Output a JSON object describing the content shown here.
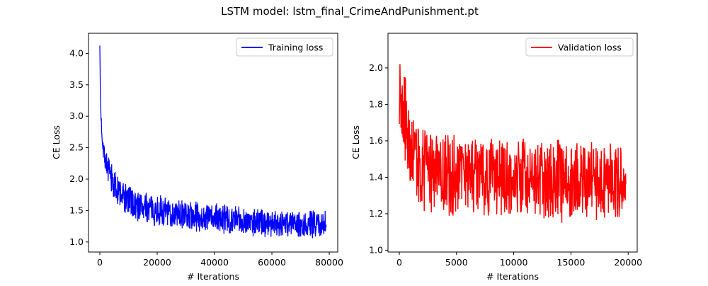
{
  "figure": {
    "title": "LSTM model: lstm_final_CrimeAndPunishment.pt"
  },
  "chart_data": [
    {
      "type": "line",
      "xlabel": "# Iterations",
      "ylabel": "CE Loss",
      "xlim": [
        -3950,
        82950
      ],
      "ylim": [
        0.84,
        4.32
      ],
      "x_ticks": [
        0,
        20000,
        40000,
        60000,
        80000
      ],
      "y_ticks": [
        1.0,
        1.5,
        2.0,
        2.5,
        3.0,
        3.5,
        4.0
      ],
      "grid": false,
      "legend_position": "top-right",
      "series": [
        {
          "name": "Training loss",
          "color": "#0000ff",
          "x_max": 79000,
          "trend": [
            [
              0,
              4.16
            ],
            [
              150,
              3.4
            ],
            [
              400,
              3.0
            ],
            [
              800,
              2.7
            ],
            [
              1500,
              2.42
            ],
            [
              3000,
              2.12
            ],
            [
              5000,
              1.9
            ],
            [
              8000,
              1.72
            ],
            [
              12000,
              1.6
            ],
            [
              20000,
              1.5
            ],
            [
              30000,
              1.42
            ],
            [
              40000,
              1.38
            ],
            [
              50000,
              1.34
            ],
            [
              60000,
              1.31
            ],
            [
              70000,
              1.29
            ],
            [
              79000,
              1.28
            ]
          ],
          "band": [
            [
              0,
              0.05
            ],
            [
              1000,
              0.22
            ],
            [
              5000,
              0.3
            ],
            [
              20000,
              0.26
            ],
            [
              79000,
              0.24
            ]
          ]
        }
      ]
    },
    {
      "type": "line",
      "xlabel": "# Iterations",
      "ylabel": "CE Loss",
      "xlim": [
        -990,
        20790
      ],
      "ylim": [
        0.99,
        2.19
      ],
      "x_ticks": [
        0,
        5000,
        10000,
        15000,
        20000
      ],
      "y_ticks": [
        1.0,
        1.2,
        1.4,
        1.6,
        1.8,
        2.0
      ],
      "grid": false,
      "legend_position": "top-right",
      "series": [
        {
          "name": "Validation loss",
          "color": "#ff0000",
          "x_max": 19800,
          "trend": [
            [
              0,
              1.85
            ],
            [
              200,
              1.82
            ],
            [
              500,
              1.72
            ],
            [
              1000,
              1.55
            ],
            [
              2000,
              1.45
            ],
            [
              4000,
              1.42
            ],
            [
              8000,
              1.4
            ],
            [
              12000,
              1.39
            ],
            [
              16000,
              1.38
            ],
            [
              19800,
              1.37
            ]
          ],
          "band": [
            [
              0,
              0.22
            ],
            [
              500,
              0.28
            ],
            [
              1000,
              0.25
            ],
            [
              19800,
              0.24
            ]
          ]
        }
      ]
    }
  ]
}
